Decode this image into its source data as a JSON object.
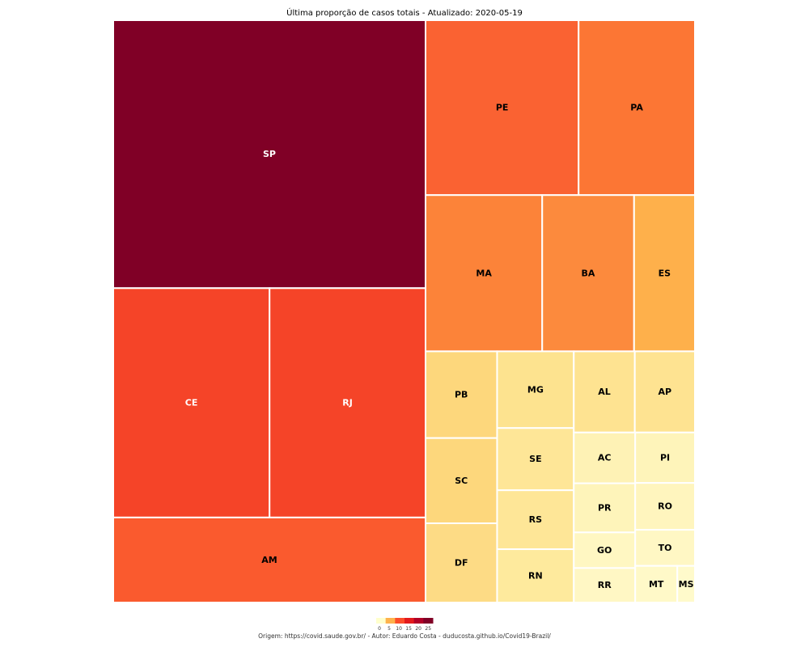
{
  "chart_data": {
    "type": "treemap",
    "title": "Última proporção de casos totais - Atualizado: 2020-05-19",
    "caption": "Origem: https://covid.saude.gov.br/   -   Autor: Eduardo Costa - duducosta.github.io/Covid19-Brazil/",
    "legend": {
      "placement": "bottom",
      "ticks": [
        "0",
        "5",
        "10",
        "15",
        "20",
        "25"
      ],
      "colors": [
        "#FFFFCC",
        "#FEB24C",
        "#FC4E2A",
        "#E31A1C",
        "#B10026",
        "#800026"
      ]
    },
    "tiles": [
      {
        "label": "SP",
        "share": 0.2332,
        "color": "#800026",
        "label_color": "#ffffff"
      },
      {
        "label": "CE",
        "share": 0.0999,
        "color": "#F54428",
        "label_color": "#ffffff"
      },
      {
        "label": "RJ",
        "share": 0.0997,
        "color": "#F54428",
        "label_color": "#ffffff"
      },
      {
        "label": "AM",
        "share": 0.074,
        "color": "#FA5A2E",
        "label_color": "#000000"
      },
      {
        "label": "PE",
        "share": 0.0746,
        "color": "#FA6232",
        "label_color": "#000000"
      },
      {
        "label": "PA",
        "share": 0.0567,
        "color": "#FC7634",
        "label_color": "#000000"
      },
      {
        "label": "MA",
        "share": 0.0508,
        "color": "#FC8339",
        "label_color": "#000000"
      },
      {
        "label": "BA",
        "share": 0.04,
        "color": "#FC8A3D",
        "label_color": "#000000"
      },
      {
        "label": "ES",
        "share": 0.0265,
        "color": "#FEB04B",
        "label_color": "#000000"
      },
      {
        "label": "PB",
        "share": 0.0173,
        "color": "#FDD77C",
        "label_color": "#000000"
      },
      {
        "label": "SC",
        "share": 0.017,
        "color": "#FDD77C",
        "label_color": "#000000"
      },
      {
        "label": "DF",
        "share": 0.0158,
        "color": "#FDDB85",
        "label_color": "#000000"
      },
      {
        "label": "MG",
        "share": 0.0164,
        "color": "#FDE38F",
        "label_color": "#000000"
      },
      {
        "label": "SE",
        "share": 0.0133,
        "color": "#FEE697",
        "label_color": "#000000"
      },
      {
        "label": "RS",
        "share": 0.0126,
        "color": "#FEE697",
        "label_color": "#000000"
      },
      {
        "label": "RN",
        "share": 0.0114,
        "color": "#FEEA9D",
        "label_color": "#000000"
      },
      {
        "label": "AL",
        "share": 0.0138,
        "color": "#FEE391",
        "label_color": "#000000"
      },
      {
        "label": "AP",
        "share": 0.0136,
        "color": "#FEE391",
        "label_color": "#000000"
      },
      {
        "label": "AC",
        "share": 0.0087,
        "color": "#FEF2B5",
        "label_color": "#000000"
      },
      {
        "label": "PI",
        "share": 0.0084,
        "color": "#FEF4BA",
        "label_color": "#000000"
      },
      {
        "label": "PR",
        "share": 0.0084,
        "color": "#FEF4BA",
        "label_color": "#000000"
      },
      {
        "label": "RO",
        "share": 0.0078,
        "color": "#FFF5BE",
        "label_color": "#000000"
      },
      {
        "label": "GO",
        "share": 0.0061,
        "color": "#FFF7C2",
        "label_color": "#000000"
      },
      {
        "label": "TO",
        "share": 0.006,
        "color": "#FFF7C4",
        "label_color": "#000000"
      },
      {
        "label": "RR",
        "share": 0.0059,
        "color": "#FFF7C4",
        "label_color": "#000000"
      },
      {
        "label": "MT",
        "share": 0.0043,
        "color": "#FFF9C8",
        "label_color": "#000000"
      },
      {
        "label": "MS",
        "share": 0.0018,
        "color": "#FFFACB",
        "label_color": "#000000"
      }
    ]
  }
}
